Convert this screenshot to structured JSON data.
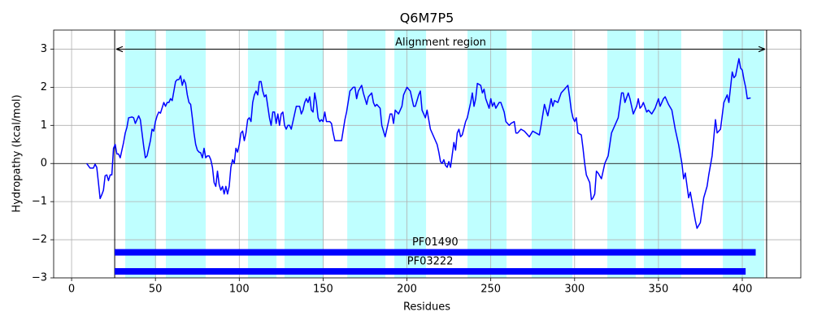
{
  "chart_data": {
    "type": "line",
    "title": "Q6M7P5",
    "xlabel": "Residues",
    "ylabel": "Hydropathy (kcal/mol)",
    "xlim": [
      -10.7,
      434.9
    ],
    "ylim": [
      -3,
      3.5
    ],
    "xticks": [
      0,
      50,
      100,
      150,
      200,
      250,
      300,
      350,
      400
    ],
    "yticks": [
      {
        "value": -3,
        "label": "−3"
      },
      {
        "value": -2,
        "label": "−2"
      },
      {
        "value": -1,
        "label": "−1"
      },
      0,
      1,
      2,
      3
    ],
    "grid": true,
    "hline": 0,
    "region_color": "#00ffff",
    "regions": [
      [
        32,
        50.4
      ],
      [
        56.2,
        80
      ],
      [
        105.2,
        122.2
      ],
      [
        127,
        150.3
      ],
      [
        164.4,
        187.2
      ],
      [
        192.5,
        211.4
      ],
      [
        236.1,
        259.4
      ],
      [
        274.4,
        298.7
      ],
      [
        319.5,
        336.5
      ],
      [
        341.3,
        363.6
      ],
      [
        388.4,
        413.1
      ]
    ],
    "alignment_region": {
      "label": "Alignment region",
      "start": 25.7,
      "end": 414.5,
      "y": 3
    },
    "domains": [
      {
        "name": "PF01490",
        "start": 25.7,
        "end": 408,
        "y": -2.33,
        "color": "#0000ff"
      },
      {
        "name": "PF03222",
        "start": 25.7,
        "end": 402,
        "y": -2.83,
        "color": "#0000ff"
      }
    ],
    "series": [
      {
        "color": "#0000ff",
        "x": [
          9,
          11,
          13,
          14,
          15,
          16,
          17,
          18,
          19,
          20,
          21,
          22,
          23,
          24,
          25,
          26,
          27,
          28,
          29,
          30,
          31,
          32,
          33,
          34,
          36,
          37,
          38,
          39,
          40,
          41,
          42,
          43,
          44,
          45,
          46,
          47,
          48,
          49,
          50,
          51,
          52,
          53,
          55,
          56,
          57,
          58,
          59,
          60,
          61,
          62,
          63,
          64,
          65,
          66,
          67,
          68,
          69,
          70,
          71,
          72,
          73,
          74,
          75,
          76,
          77,
          78,
          79,
          80,
          81,
          82,
          83,
          84,
          85,
          86,
          87,
          88,
          89,
          90,
          91,
          92,
          93,
          94,
          95,
          96,
          97,
          98,
          99,
          100,
          101,
          102,
          103,
          104,
          105,
          106,
          107,
          108,
          109,
          110,
          111,
          112,
          113,
          114,
          115,
          116,
          117,
          118,
          119,
          120,
          121,
          122,
          123,
          124,
          125,
          126,
          127,
          128,
          129,
          130,
          131,
          132,
          133,
          134,
          136,
          137,
          138,
          139,
          140,
          141,
          142,
          143,
          144,
          145,
          146,
          147,
          148,
          149,
          150,
          151,
          152,
          153,
          154,
          155,
          156,
          157,
          158,
          159,
          161,
          163,
          164,
          166,
          168,
          169,
          170,
          171,
          173,
          174,
          176,
          177,
          179,
          180,
          181,
          182,
          184,
          185,
          187,
          188,
          190,
          191,
          192,
          193,
          194,
          195,
          197,
          198,
          200,
          201,
          202,
          204,
          205,
          207,
          208,
          209,
          211,
          212,
          214,
          216,
          218,
          219,
          220,
          221,
          222,
          223,
          224,
          225,
          226,
          228,
          229,
          230,
          231,
          232,
          233,
          235,
          236,
          238,
          239,
          240,
          241,
          242,
          244,
          245,
          246,
          247,
          249,
          250,
          251,
          252,
          253,
          255,
          256,
          258,
          259,
          261,
          262,
          264,
          265,
          266,
          268,
          270,
          272,
          273,
          275,
          277,
          279,
          280,
          282,
          284,
          286,
          287,
          288,
          290,
          292,
          294,
          296,
          297,
          298,
          299,
          300,
          301,
          302,
          304,
          305,
          306,
          307,
          309,
          310,
          311,
          312,
          313,
          314,
          316,
          318,
          320,
          322,
          324,
          326,
          328,
          329,
          330,
          332,
          333,
          335,
          337,
          338,
          339,
          340,
          341,
          343,
          344,
          346,
          348,
          350,
          351,
          353,
          354,
          356,
          358,
          360,
          362,
          364,
          365,
          366,
          368,
          369,
          370,
          372,
          373,
          375,
          377,
          379,
          380,
          382,
          384,
          385,
          387,
          389,
          391,
          392,
          394,
          395,
          396,
          398,
          399,
          400,
          401,
          402,
          403,
          405
        ],
        "values": [
          0,
          -0.12,
          -0.12,
          -0.02,
          -0.1,
          -0.5,
          -0.92,
          -0.82,
          -0.7,
          -0.32,
          -0.3,
          -0.45,
          -0.3,
          -0.3,
          0.4,
          0.5,
          0.25,
          0.25,
          0.15,
          0.35,
          0.55,
          0.8,
          0.95,
          1.2,
          1.22,
          1.2,
          1.05,
          1.15,
          1.25,
          1.15,
          0.8,
          0.45,
          0.15,
          0.2,
          0.4,
          0.6,
          0.9,
          0.85,
          1.1,
          1.25,
          1.35,
          1.32,
          1.6,
          1.5,
          1.6,
          1.6,
          1.7,
          1.65,
          1.9,
          2.15,
          2.2,
          2.2,
          2.3,
          2.05,
          2.2,
          2.1,
          1.8,
          1.6,
          1.55,
          1.2,
          0.8,
          0.5,
          0.35,
          0.3,
          0.28,
          0.15,
          0.4,
          0.15,
          0.2,
          0.2,
          0.1,
          -0.1,
          -0.5,
          -0.6,
          -0.2,
          -0.55,
          -0.7,
          -0.6,
          -0.8,
          -0.6,
          -0.8,
          -0.6,
          -0.1,
          0.1,
          0,
          0.4,
          0.3,
          0.5,
          0.8,
          0.85,
          0.6,
          0.8,
          1.15,
          1.2,
          1.1,
          1.6,
          1.8,
          1.9,
          1.8,
          2.15,
          2.15,
          1.9,
          1.75,
          1.8,
          1.5,
          1.2,
          1,
          1.35,
          1.35,
          1.05,
          1.3,
          1,
          1.3,
          1.35,
          1,
          0.9,
          1,
          1,
          0.9,
          1.1,
          1.3,
          1.5,
          1.5,
          1.3,
          1.4,
          1.6,
          1.7,
          1.6,
          1.75,
          1.4,
          1.35,
          1.85,
          1.6,
          1.2,
          1.1,
          1.15,
          1.1,
          1.35,
          1.1,
          1.1,
          1.1,
          1.05,
          0.8,
          0.6,
          0.6,
          0.6,
          0.6,
          1.15,
          1.35,
          1.9,
          2,
          2,
          1.7,
          1.9,
          2.05,
          1.85,
          1.55,
          1.75,
          1.85,
          1.6,
          1.5,
          1.55,
          1.45,
          1,
          0.7,
          0.9,
          1.3,
          1.3,
          1.05,
          1.4,
          1.35,
          1.3,
          1.5,
          1.8,
          2,
          1.95,
          1.9,
          1.5,
          1.5,
          1.8,
          1.9,
          1.4,
          1.2,
          1.4,
          0.9,
          0.7,
          0.5,
          0.3,
          0.05,
          0,
          0.1,
          -0.05,
          -0.1,
          0.05,
          -0.1,
          0.55,
          0.35,
          0.8,
          0.9,
          0.7,
          0.75,
          1.1,
          1.2,
          1.6,
          1.85,
          1.5,
          1.7,
          2.1,
          2.05,
          1.85,
          1.95,
          1.7,
          1.45,
          1.7,
          1.5,
          1.6,
          1.45,
          1.6,
          1.6,
          1.35,
          1.1,
          1,
          1.05,
          1.1,
          0.8,
          0.8,
          0.9,
          0.85,
          0.75,
          0.7,
          0.85,
          0.8,
          0.75,
          1,
          1.55,
          1.25,
          1.7,
          1.5,
          1.65,
          1.6,
          1.85,
          1.95,
          2.05,
          1.75,
          1.4,
          1.2,
          1.1,
          1.2,
          0.8,
          0.75,
          0.4,
          0,
          -0.3,
          -0.5,
          -0.95,
          -0.9,
          -0.8,
          -0.2,
          -0.25,
          -0.4,
          0,
          0.2,
          0.8,
          1,
          1.2,
          1.85,
          1.85,
          1.6,
          1.85,
          1.7,
          1.3,
          1.5,
          1.7,
          1.45,
          1.5,
          1.6,
          1.35,
          1.4,
          1.3,
          1.45,
          1.7,
          1.5,
          1.7,
          1.75,
          1.55,
          1.4,
          0.9,
          0.5,
          0,
          -0.4,
          -0.25,
          -0.9,
          -0.75,
          -1,
          -1.5,
          -1.7,
          -1.55,
          -0.9,
          -0.6,
          -0.3,
          0.2,
          1.15,
          0.8,
          0.9,
          1.6,
          1.8,
          1.6,
          2.4,
          2.25,
          2.3,
          2.75,
          2.5,
          2.45,
          2.2,
          2,
          1.7,
          1.72
        ]
      }
    ]
  }
}
